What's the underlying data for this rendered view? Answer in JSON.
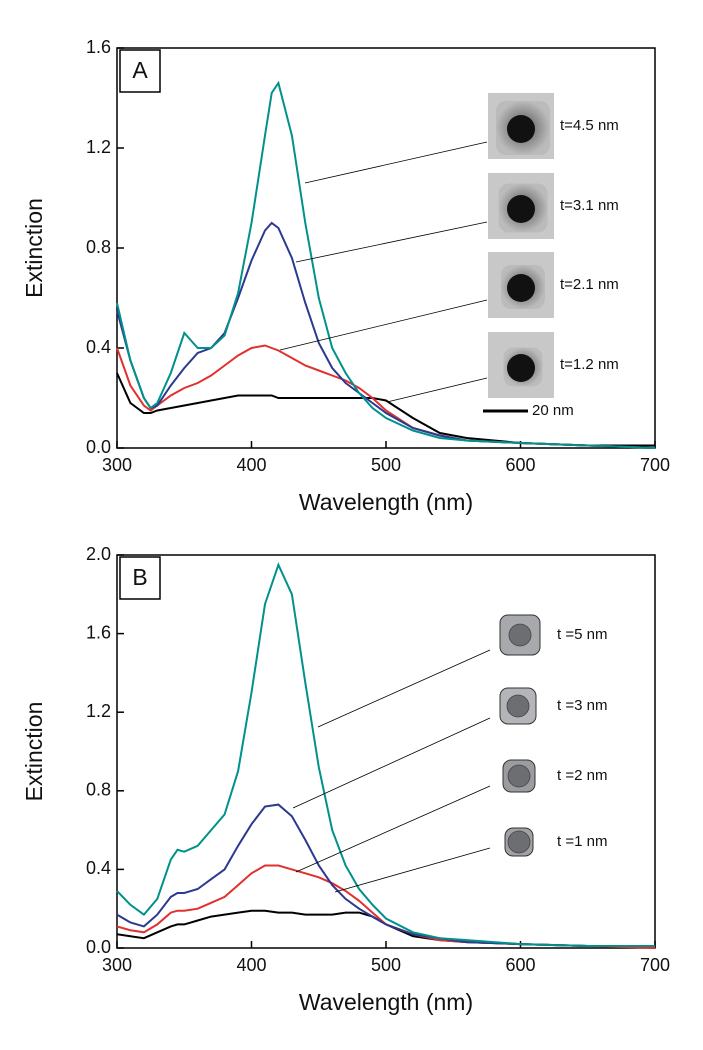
{
  "chart_data": [
    {
      "type": "line",
      "panel": "A",
      "x_label": "Wavelength (nm)",
      "y_label": "Extinction",
      "x": [
        300,
        310,
        320,
        325,
        330,
        340,
        350,
        360,
        370,
        380,
        390,
        400,
        410,
        415,
        420,
        430,
        440,
        450,
        460,
        470,
        480,
        490,
        500,
        520,
        540,
        560,
        600,
        650,
        700
      ],
      "series": [
        {
          "name": "t=4.5 nm",
          "color": "#00918a",
          "values": [
            0.58,
            0.35,
            0.2,
            0.16,
            0.18,
            0.3,
            0.46,
            0.4,
            0.4,
            0.45,
            0.62,
            0.9,
            1.25,
            1.42,
            1.46,
            1.25,
            0.9,
            0.6,
            0.4,
            0.3,
            0.22,
            0.16,
            0.12,
            0.07,
            0.04,
            0.03,
            0.02,
            0.01,
            0.0
          ]
        },
        {
          "name": "t=3.1 nm",
          "color": "#2b3990",
          "values": [
            0.55,
            0.35,
            0.2,
            0.16,
            0.17,
            0.25,
            0.32,
            0.38,
            0.4,
            0.46,
            0.6,
            0.75,
            0.87,
            0.9,
            0.88,
            0.76,
            0.58,
            0.42,
            0.32,
            0.26,
            0.22,
            0.18,
            0.14,
            0.08,
            0.05,
            0.03,
            0.02,
            0.01,
            0.0
          ]
        },
        {
          "name": "t=2.1 nm",
          "color": "#e0312e",
          "values": [
            0.4,
            0.25,
            0.17,
            0.15,
            0.17,
            0.21,
            0.24,
            0.26,
            0.29,
            0.33,
            0.37,
            0.4,
            0.41,
            0.4,
            0.39,
            0.36,
            0.33,
            0.31,
            0.29,
            0.27,
            0.24,
            0.2,
            0.15,
            0.08,
            0.05,
            0.03,
            0.02,
            0.01,
            0.0
          ]
        },
        {
          "name": "t=1.2 nm",
          "color": "#000000",
          "values": [
            0.3,
            0.18,
            0.14,
            0.14,
            0.15,
            0.16,
            0.17,
            0.18,
            0.19,
            0.2,
            0.21,
            0.21,
            0.21,
            0.21,
            0.2,
            0.2,
            0.2,
            0.2,
            0.2,
            0.2,
            0.2,
            0.2,
            0.19,
            0.12,
            0.06,
            0.04,
            0.02,
            0.01,
            0.01
          ]
        }
      ],
      "scale_bar": "20 nm",
      "xlim": [
        300,
        700
      ],
      "xticks": [
        300,
        400,
        500,
        600,
        700
      ],
      "ylim": [
        0,
        1.6
      ],
      "yticks": [
        {
          "value": 0,
          "label": "0.0"
        },
        0.4,
        0.8,
        1.2,
        1.6
      ]
    },
    {
      "type": "line",
      "panel": "B",
      "x_label": "Wavelength (nm)",
      "y_label": "Extinction",
      "x": [
        300,
        310,
        320,
        330,
        340,
        345,
        350,
        360,
        370,
        380,
        390,
        400,
        410,
        420,
        430,
        440,
        450,
        460,
        470,
        480,
        490,
        500,
        520,
        540,
        560,
        600,
        650,
        700
      ],
      "series": [
        {
          "name": "t =5 nm",
          "color": "#00918a",
          "values": [
            0.29,
            0.22,
            0.17,
            0.25,
            0.45,
            0.5,
            0.49,
            0.52,
            0.6,
            0.68,
            0.9,
            1.3,
            1.75,
            1.95,
            1.8,
            1.35,
            0.92,
            0.6,
            0.42,
            0.3,
            0.22,
            0.15,
            0.08,
            0.05,
            0.04,
            0.02,
            0.01,
            0.01
          ]
        },
        {
          "name": "t =3 nm",
          "color": "#2b3990",
          "values": [
            0.17,
            0.13,
            0.11,
            0.17,
            0.26,
            0.28,
            0.28,
            0.3,
            0.35,
            0.4,
            0.52,
            0.63,
            0.72,
            0.73,
            0.67,
            0.55,
            0.42,
            0.32,
            0.25,
            0.2,
            0.16,
            0.12,
            0.07,
            0.05,
            0.03,
            0.02,
            0.01,
            0.01
          ]
        },
        {
          "name": "t =2 nm",
          "color": "#e0312e",
          "values": [
            0.11,
            0.09,
            0.08,
            0.12,
            0.18,
            0.19,
            0.19,
            0.2,
            0.23,
            0.26,
            0.32,
            0.38,
            0.42,
            0.42,
            0.4,
            0.38,
            0.36,
            0.33,
            0.29,
            0.24,
            0.18,
            0.12,
            0.07,
            0.04,
            0.03,
            0.02,
            0.01,
            0.0
          ]
        },
        {
          "name": "t =1 nm",
          "color": "#000000",
          "values": [
            0.07,
            0.06,
            0.05,
            0.08,
            0.11,
            0.12,
            0.12,
            0.14,
            0.16,
            0.17,
            0.18,
            0.19,
            0.19,
            0.18,
            0.18,
            0.17,
            0.17,
            0.17,
            0.18,
            0.18,
            0.16,
            0.12,
            0.06,
            0.04,
            0.03,
            0.02,
            0.01,
            0.01
          ]
        }
      ],
      "xlim": [
        300,
        700
      ],
      "xticks": [
        300,
        400,
        500,
        600,
        700
      ],
      "ylim": [
        0,
        2.0
      ],
      "yticks": [
        {
          "value": 0,
          "label": "0.0"
        },
        0.4,
        0.8,
        1.2,
        1.6,
        {
          "value": 2.0,
          "label": "2.0"
        }
      ]
    }
  ]
}
